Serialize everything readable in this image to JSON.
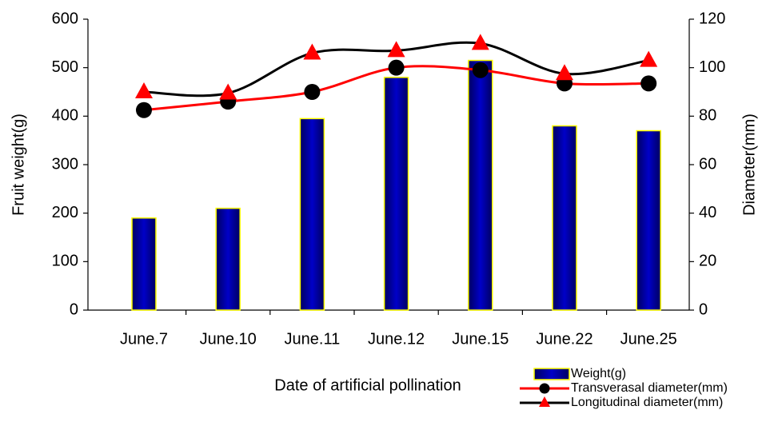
{
  "chart_data": {
    "type": "bar_line",
    "xlabel": "Date of artificial pollination",
    "ylabel": "Fruit weight(g)",
    "y2label": "Diameter(mm)",
    "categories": [
      "June.7",
      "June.10",
      "June.11",
      "June.12",
      "June.15",
      "June.22",
      "June.25"
    ],
    "series": [
      {
        "name": "Weight(g)",
        "type": "bar",
        "color": "#0000c8",
        "edge_color": "#ffff00",
        "values": [
          190,
          210,
          395,
          480,
          515,
          380,
          370
        ]
      },
      {
        "name": "Transverasal diameter(mm)",
        "type": "line",
        "marker": "circle",
        "color": "#ff0000",
        "marker_color": "#000000",
        "axis": "y2",
        "values": [
          82.5,
          86,
          90,
          100,
          99,
          93.5,
          93.5
        ]
      },
      {
        "name": "Longitudinal diameter(mm)",
        "type": "line",
        "marker": "triangle",
        "color": "#000000",
        "marker_color": "#ff0000",
        "axis": "y2",
        "values": [
          90,
          89.5,
          106,
          107,
          110,
          97.5,
          103
        ]
      }
    ],
    "ylim": [
      0,
      600
    ],
    "yticks": [
      0,
      100,
      200,
      300,
      400,
      500,
      600
    ],
    "y2lim": [
      0,
      120
    ],
    "y2ticks": [
      0,
      20,
      40,
      60,
      80,
      100,
      120
    ],
    "grid": false,
    "legend": "lower right"
  }
}
